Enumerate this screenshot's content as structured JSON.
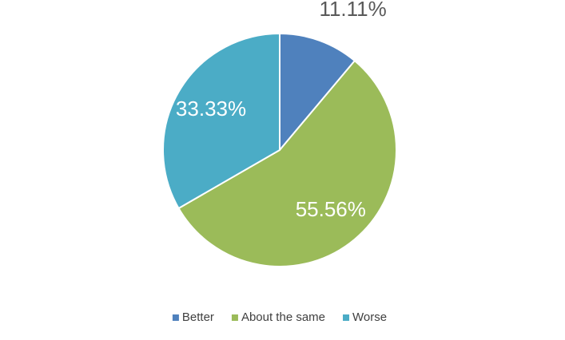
{
  "chart_data": {
    "type": "pie",
    "categories": [
      "Better",
      "About the same",
      "Worse"
    ],
    "values": [
      11.11,
      55.56,
      33.33
    ],
    "value_labels": [
      "11.11%",
      "55.56%",
      "33.33%"
    ],
    "colors": [
      "#4f81bd",
      "#9bbb59",
      "#4bacc6"
    ],
    "legend": "bottom"
  }
}
